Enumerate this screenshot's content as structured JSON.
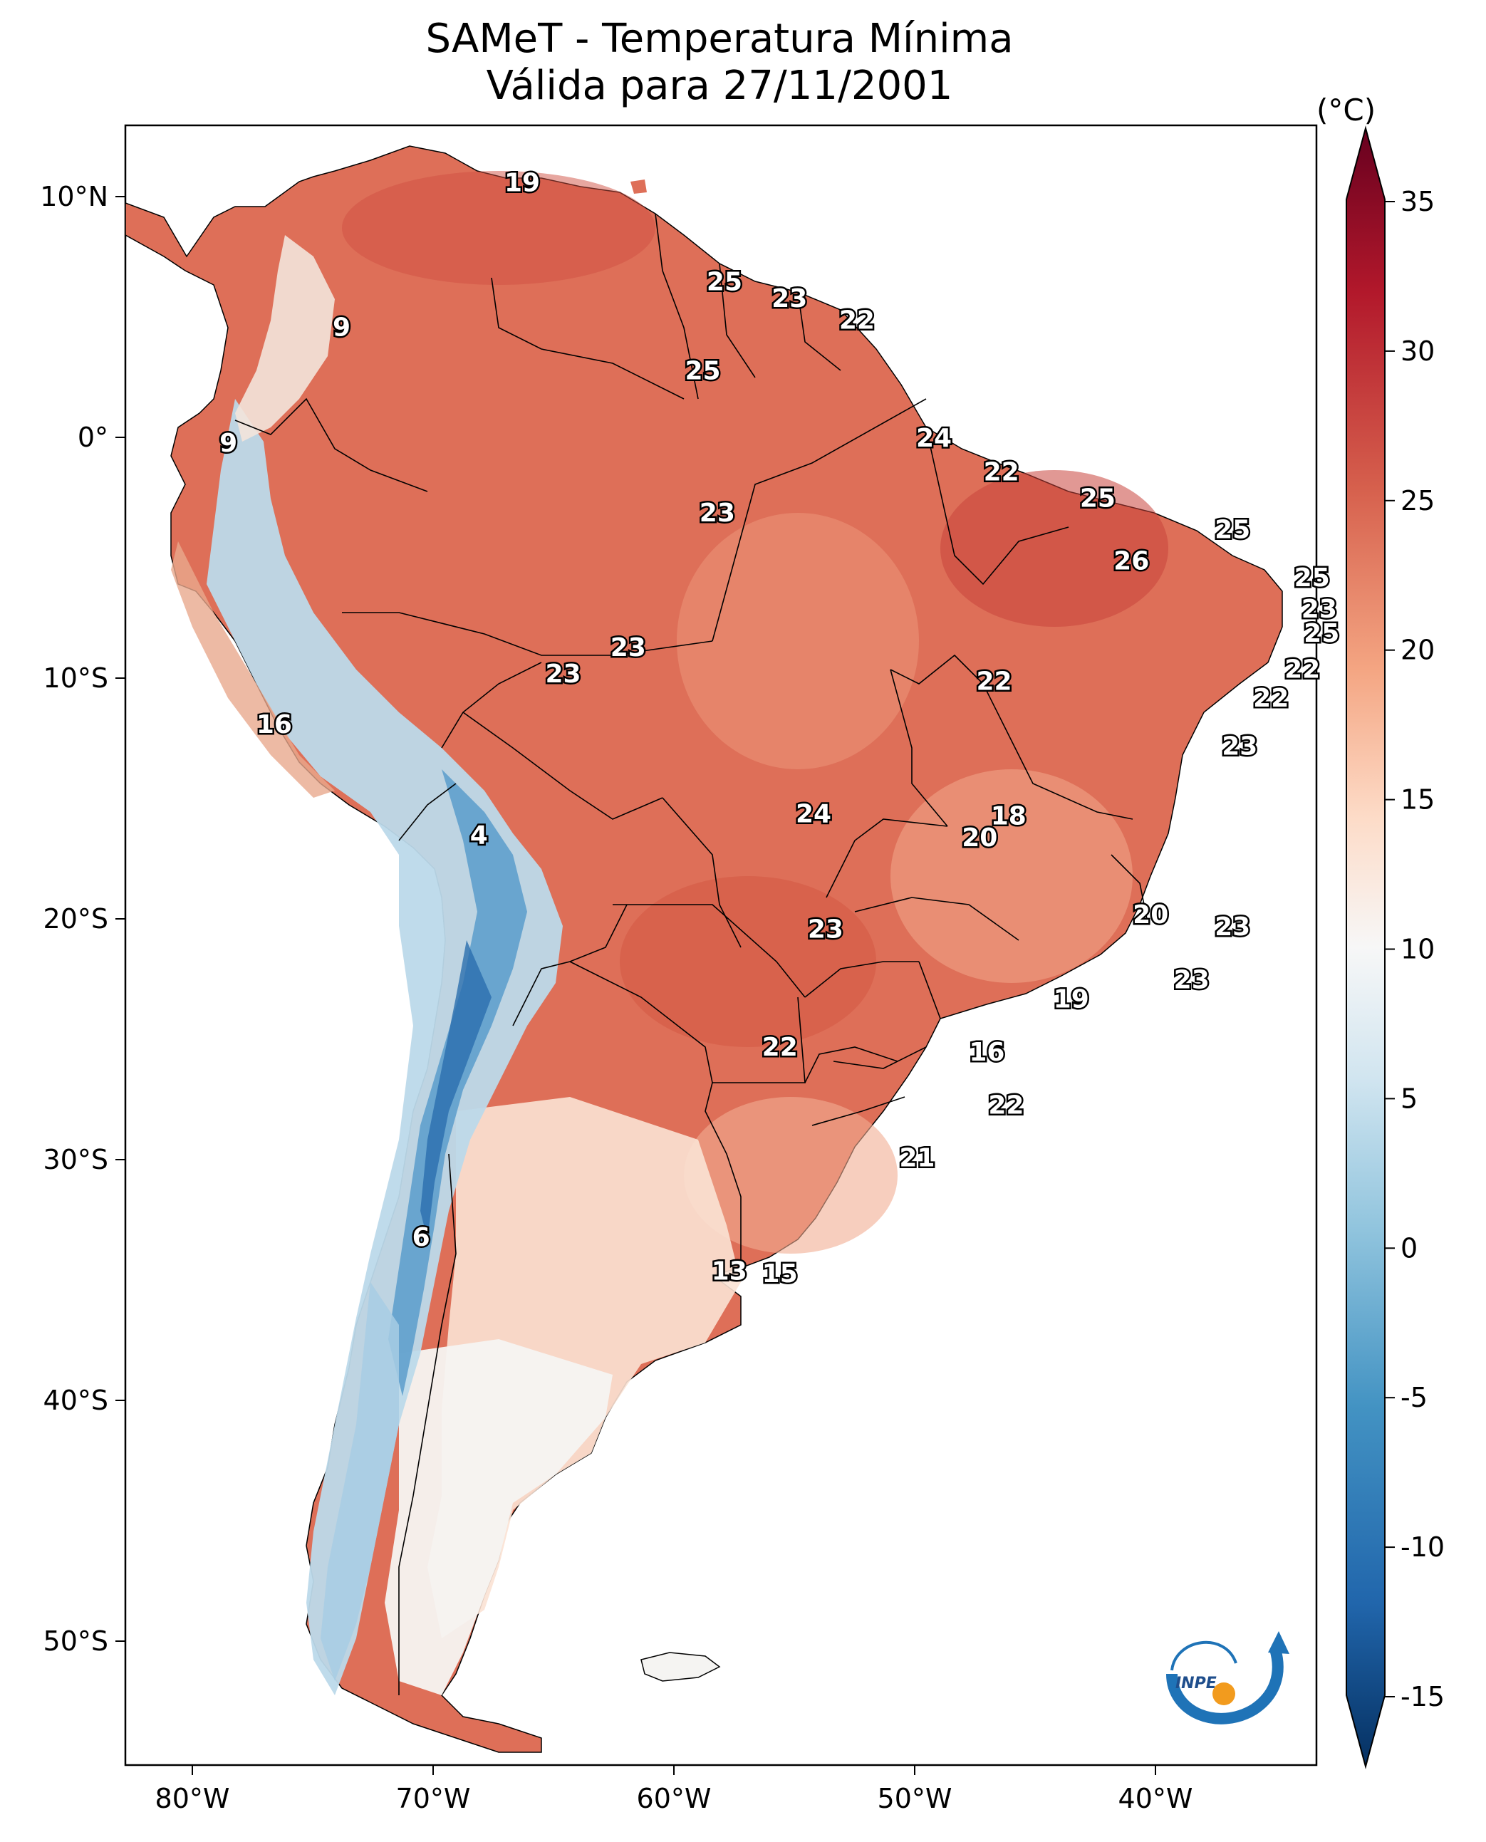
{
  "title": {
    "line1": "SAMeT - Temperatura Mínima",
    "line2": "Válida para 27/11/2001"
  },
  "colorbar": {
    "unit": "(°C)",
    "ticks": [
      "35",
      "30",
      "25",
      "20",
      "15",
      "10",
      "5",
      "0",
      "-5",
      "-10",
      "-15"
    ],
    "colors": {
      "darkred": "#67001f",
      "red": "#b2182b",
      "salmon": "#d6604d",
      "peach": "#f4a582",
      "pink": "#fddbc7",
      "white": "#f7f7f7",
      "lightblue": "#d1e5f0",
      "sky": "#92c5de",
      "mid": "#4393c3",
      "blue": "#2166ac",
      "navy": "#053061"
    }
  },
  "axes": {
    "lon_ticks": [
      "80°W",
      "70°W",
      "60°W",
      "50°W",
      "40°W"
    ],
    "lat_ticks": [
      "10°N",
      "0°",
      "10°S",
      "20°S",
      "30°S",
      "40°S",
      "50°S"
    ]
  },
  "logo": {
    "text": "INPE"
  },
  "station_labels": [
    {
      "v": "19",
      "lon": -66.3,
      "lat": 10.6
    },
    {
      "v": "9",
      "lon": -73.8,
      "lat": 4.6
    },
    {
      "v": "25",
      "lon": -57.9,
      "lat": 6.5
    },
    {
      "v": "23",
      "lon": -55.2,
      "lat": 5.8
    },
    {
      "v": "22",
      "lon": -52.4,
      "lat": 4.9
    },
    {
      "v": "25",
      "lon": -58.8,
      "lat": 2.8
    },
    {
      "v": "9",
      "lon": -78.5,
      "lat": -0.2
    },
    {
      "v": "24",
      "lon": -49.2,
      "lat": 0.0
    },
    {
      "v": "22",
      "lon": -46.4,
      "lat": -1.4
    },
    {
      "v": "23",
      "lon": -58.2,
      "lat": -3.1
    },
    {
      "v": "25",
      "lon": -42.4,
      "lat": -2.5
    },
    {
      "v": "25",
      "lon": -36.8,
      "lat": -3.8
    },
    {
      "v": "26",
      "lon": -41.0,
      "lat": -5.1
    },
    {
      "v": "25",
      "lon": -33.5,
      "lat": -5.8
    },
    {
      "v": "23",
      "lon": -33.2,
      "lat": -7.1
    },
    {
      "v": "25",
      "lon": -33.1,
      "lat": -8.1
    },
    {
      "v": "23",
      "lon": -61.9,
      "lat": -8.7
    },
    {
      "v": "23",
      "lon": -64.6,
      "lat": -9.8
    },
    {
      "v": "22",
      "lon": -33.9,
      "lat": -9.6
    },
    {
      "v": "22",
      "lon": -46.7,
      "lat": -10.1
    },
    {
      "v": "22",
      "lon": -35.2,
      "lat": -10.8
    },
    {
      "v": "16",
      "lon": -76.6,
      "lat": -11.9
    },
    {
      "v": "23",
      "lon": -36.5,
      "lat": -12.8
    },
    {
      "v": "24",
      "lon": -54.2,
      "lat": -15.6
    },
    {
      "v": "18",
      "lon": -46.1,
      "lat": -15.7
    },
    {
      "v": "20",
      "lon": -47.3,
      "lat": -16.6
    },
    {
      "v": "4",
      "lon": -68.1,
      "lat": -16.5
    },
    {
      "v": "20",
      "lon": -40.2,
      "lat": -19.8
    },
    {
      "v": "23",
      "lon": -36.8,
      "lat": -20.3
    },
    {
      "v": "23",
      "lon": -53.7,
      "lat": -20.4
    },
    {
      "v": "23",
      "lon": -38.5,
      "lat": -22.5
    },
    {
      "v": "19",
      "lon": -43.5,
      "lat": -23.3
    },
    {
      "v": "22",
      "lon": -55.6,
      "lat": -25.3
    },
    {
      "v": "16",
      "lon": -47.0,
      "lat": -25.5
    },
    {
      "v": "22",
      "lon": -46.2,
      "lat": -27.7
    },
    {
      "v": "21",
      "lon": -49.9,
      "lat": -29.9
    },
    {
      "v": "6",
      "lon": -70.5,
      "lat": -33.2
    },
    {
      "v": "13",
      "lon": -57.7,
      "lat": -34.6
    },
    {
      "v": "15",
      "lon": -55.6,
      "lat": -34.7
    }
  ]
}
